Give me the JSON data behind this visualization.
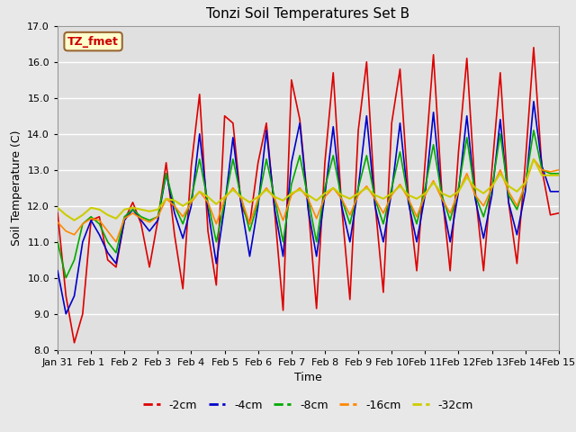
{
  "title": "Tonzi Soil Temperatures Set B",
  "xlabel": "Time",
  "ylabel": "Soil Temperature (C)",
  "ylim": [
    8.0,
    17.0
  ],
  "yticks": [
    8.0,
    9.0,
    10.0,
    11.0,
    12.0,
    13.0,
    14.0,
    15.0,
    16.0,
    17.0
  ],
  "xtick_labels": [
    "Jan 31",
    "Feb 1",
    "Feb 2",
    "Feb 3",
    "Feb 4",
    "Feb 5",
    "Feb 6",
    "Feb 7",
    "Feb 8",
    "Feb 9",
    "Feb 10",
    "Feb 11",
    "Feb 12",
    "Feb 13",
    "Feb 14",
    "Feb 15"
  ],
  "annotation_text": "TZ_fmet",
  "annotation_bg": "#ffffcc",
  "annotation_border": "#996633",
  "annotation_text_color": "#cc0000",
  "series": [
    {
      "label": "-2cm",
      "color": "#dd0000",
      "linewidth": 1.2,
      "x": [
        0,
        0.25,
        0.5,
        0.75,
        1.0,
        1.25,
        1.5,
        1.75,
        2.0,
        2.25,
        2.5,
        2.75,
        3.0,
        3.25,
        3.5,
        3.75,
        4.0,
        4.25,
        4.5,
        4.75,
        5.0,
        5.25,
        5.5,
        5.75,
        6.0,
        6.25,
        6.5,
        6.75,
        7.0,
        7.25,
        7.5,
        7.75,
        8.0,
        8.25,
        8.5,
        8.75,
        9.0,
        9.25,
        9.5,
        9.75,
        10.0,
        10.25,
        10.5,
        10.75,
        11.0,
        11.25,
        11.5,
        11.75,
        12.0,
        12.25,
        12.5,
        12.75,
        13.0,
        13.25,
        13.5,
        13.75,
        14.0,
        14.25,
        14.5,
        14.75,
        15.0
      ],
      "y": [
        11.8,
        9.5,
        8.2,
        9.0,
        11.6,
        11.7,
        10.5,
        10.3,
        11.6,
        12.1,
        11.5,
        10.3,
        11.6,
        13.2,
        11.2,
        9.7,
        13.1,
        15.1,
        11.3,
        9.8,
        14.5,
        14.3,
        12.0,
        11.5,
        13.2,
        14.3,
        11.8,
        9.1,
        15.5,
        14.4,
        12.0,
        9.15,
        13.2,
        15.7,
        12.0,
        9.4,
        14.1,
        16.0,
        12.1,
        9.6,
        14.3,
        15.8,
        12.3,
        10.2,
        13.2,
        16.2,
        12.4,
        10.2,
        13.5,
        16.1,
        12.4,
        10.2,
        13.0,
        15.7,
        12.1,
        10.4,
        13.2,
        16.4,
        13.0,
        11.75,
        11.8
      ]
    },
    {
      "label": "-4cm",
      "color": "#0000cc",
      "linewidth": 1.2,
      "x": [
        0,
        0.25,
        0.5,
        0.75,
        1.0,
        1.25,
        1.5,
        1.75,
        2.0,
        2.25,
        2.5,
        2.75,
        3.0,
        3.25,
        3.5,
        3.75,
        4.0,
        4.25,
        4.5,
        4.75,
        5.0,
        5.25,
        5.5,
        5.75,
        6.0,
        6.25,
        6.5,
        6.75,
        7.0,
        7.25,
        7.5,
        7.75,
        8.0,
        8.25,
        8.5,
        8.75,
        9.0,
        9.25,
        9.5,
        9.75,
        10.0,
        10.25,
        10.5,
        10.75,
        11.0,
        11.25,
        11.5,
        11.75,
        12.0,
        12.25,
        12.5,
        12.75,
        13.0,
        13.25,
        13.5,
        13.75,
        14.0,
        14.25,
        14.5,
        14.75,
        15.0
      ],
      "y": [
        10.2,
        9.0,
        9.5,
        11.0,
        11.6,
        11.2,
        10.7,
        10.4,
        11.6,
        11.9,
        11.6,
        11.3,
        11.6,
        12.9,
        11.8,
        11.1,
        12.0,
        14.0,
        11.9,
        10.4,
        12.0,
        13.9,
        12.0,
        10.6,
        12.0,
        14.1,
        11.9,
        10.6,
        13.2,
        14.3,
        11.9,
        10.6,
        12.3,
        14.2,
        12.0,
        11.0,
        12.5,
        14.5,
        12.0,
        11.0,
        12.4,
        14.3,
        12.1,
        11.0,
        12.3,
        14.6,
        12.2,
        11.0,
        12.4,
        14.5,
        12.2,
        11.1,
        12.3,
        14.4,
        12.1,
        11.2,
        12.4,
        14.9,
        13.1,
        12.4,
        12.4
      ]
    },
    {
      "label": "-8cm",
      "color": "#00aa00",
      "linewidth": 1.2,
      "x": [
        0,
        0.25,
        0.5,
        0.75,
        1.0,
        1.25,
        1.5,
        1.75,
        2.0,
        2.25,
        2.5,
        2.75,
        3.0,
        3.25,
        3.5,
        3.75,
        4.0,
        4.25,
        4.5,
        4.75,
        5.0,
        5.25,
        5.5,
        5.75,
        6.0,
        6.25,
        6.5,
        6.75,
        7.0,
        7.25,
        7.5,
        7.75,
        8.0,
        8.25,
        8.5,
        8.75,
        9.0,
        9.25,
        9.5,
        9.75,
        10.0,
        10.25,
        10.5,
        10.75,
        11.0,
        11.25,
        11.5,
        11.75,
        12.0,
        12.25,
        12.5,
        12.75,
        13.0,
        13.25,
        13.5,
        13.75,
        14.0,
        14.25,
        14.5,
        14.75,
        15.0
      ],
      "y": [
        11.0,
        10.0,
        10.5,
        11.5,
        11.7,
        11.5,
        11.0,
        10.7,
        11.7,
        11.9,
        11.7,
        11.6,
        11.7,
        12.9,
        12.0,
        11.5,
        12.2,
        13.3,
        12.1,
        11.0,
        12.1,
        13.3,
        12.2,
        11.3,
        12.1,
        13.3,
        12.2,
        11.0,
        12.6,
        13.4,
        12.2,
        11.0,
        12.5,
        13.4,
        12.2,
        11.5,
        12.5,
        13.4,
        12.2,
        11.5,
        12.5,
        13.5,
        12.2,
        11.5,
        12.5,
        13.7,
        12.3,
        11.6,
        12.5,
        13.9,
        12.3,
        11.7,
        12.5,
        14.0,
        12.3,
        11.9,
        12.6,
        14.1,
        13.0,
        12.9,
        12.9
      ]
    },
    {
      "label": "-16cm",
      "color": "#ff8800",
      "linewidth": 1.2,
      "x": [
        0,
        0.25,
        0.5,
        0.75,
        1.0,
        1.25,
        1.5,
        1.75,
        2.0,
        2.25,
        2.5,
        2.75,
        3.0,
        3.25,
        3.5,
        3.75,
        4.0,
        4.25,
        4.5,
        4.75,
        5.0,
        5.25,
        5.5,
        5.75,
        6.0,
        6.25,
        6.5,
        6.75,
        7.0,
        7.25,
        7.5,
        7.75,
        8.0,
        8.25,
        8.5,
        8.75,
        9.0,
        9.25,
        9.5,
        9.75,
        10.0,
        10.25,
        10.5,
        10.75,
        11.0,
        11.25,
        11.5,
        11.75,
        12.0,
        12.25,
        12.5,
        12.75,
        13.0,
        13.25,
        13.5,
        13.75,
        14.0,
        14.25,
        14.5,
        14.75,
        15.0
      ],
      "y": [
        11.55,
        11.3,
        11.2,
        11.5,
        11.65,
        11.6,
        11.3,
        11.0,
        11.65,
        11.8,
        11.65,
        11.55,
        11.7,
        12.2,
        12.0,
        11.7,
        12.1,
        12.4,
        12.1,
        11.5,
        12.2,
        12.5,
        12.2,
        11.5,
        12.2,
        12.5,
        12.2,
        11.6,
        12.3,
        12.5,
        12.2,
        11.65,
        12.25,
        12.5,
        12.2,
        11.75,
        12.3,
        12.55,
        12.2,
        11.8,
        12.3,
        12.6,
        12.2,
        11.7,
        12.3,
        12.7,
        12.2,
        11.8,
        12.4,
        12.9,
        12.3,
        12.0,
        12.5,
        13.0,
        12.4,
        12.0,
        12.6,
        13.3,
        13.0,
        12.95,
        13.0
      ]
    },
    {
      "label": "-32cm",
      "color": "#cccc00",
      "linewidth": 1.5,
      "x": [
        0,
        0.25,
        0.5,
        0.75,
        1.0,
        1.25,
        1.5,
        1.75,
        2.0,
        2.25,
        2.5,
        2.75,
        3.0,
        3.25,
        3.5,
        3.75,
        4.0,
        4.25,
        4.5,
        4.75,
        5.0,
        5.25,
        5.5,
        5.75,
        6.0,
        6.25,
        6.5,
        6.75,
        7.0,
        7.25,
        7.5,
        7.75,
        8.0,
        8.25,
        8.5,
        8.75,
        9.0,
        9.25,
        9.5,
        9.75,
        10.0,
        10.25,
        10.5,
        10.75,
        11.0,
        11.25,
        11.5,
        11.75,
        12.0,
        12.25,
        12.5,
        12.75,
        13.0,
        13.25,
        13.5,
        13.75,
        14.0,
        14.25,
        14.5,
        14.75,
        15.0
      ],
      "y": [
        11.95,
        11.75,
        11.6,
        11.75,
        11.95,
        11.9,
        11.75,
        11.65,
        11.9,
        11.95,
        11.9,
        11.85,
        11.9,
        12.2,
        12.15,
        12.0,
        12.15,
        12.4,
        12.25,
        12.05,
        12.25,
        12.45,
        12.25,
        12.1,
        12.25,
        12.45,
        12.25,
        12.15,
        12.35,
        12.45,
        12.3,
        12.15,
        12.35,
        12.5,
        12.3,
        12.2,
        12.35,
        12.5,
        12.3,
        12.2,
        12.35,
        12.55,
        12.3,
        12.2,
        12.35,
        12.65,
        12.35,
        12.25,
        12.4,
        12.8,
        12.5,
        12.35,
        12.55,
        12.9,
        12.55,
        12.4,
        12.65,
        13.3,
        12.85,
        12.85,
        12.85
      ]
    }
  ],
  "fig_bg_color": "#e8e8e8",
  "plot_bg_color": "#e0e0e0",
  "grid_color": "#ffffff",
  "figsize": [
    6.4,
    4.8
  ],
  "dpi": 100,
  "title_fontsize": 11,
  "axis_label_fontsize": 9,
  "tick_fontsize": 8,
  "legend_fontsize": 9
}
